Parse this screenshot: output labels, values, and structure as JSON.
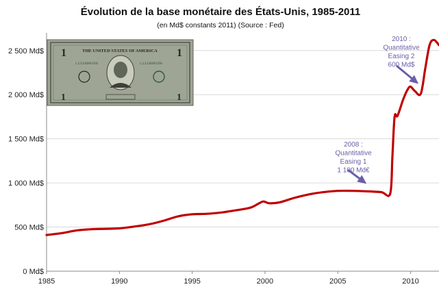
{
  "chart_data": {
    "type": "line",
    "title": "Évolution de la base monétaire des États-Unis, 1985-2011",
    "subtitle": "(en Md$ constants 2011) (Source : Fed)",
    "xlabel": "",
    "ylabel": "",
    "xlim": [
      1985,
      2011.95
    ],
    "ylim": [
      0,
      2700
    ],
    "grid": true,
    "x_ticks": [
      1985,
      1990,
      1995,
      2000,
      2005,
      2010
    ],
    "x_tick_labels": [
      "1985",
      "1990",
      "1995",
      "2000",
      "2005",
      "2010"
    ],
    "y_ticks": [
      0,
      500,
      1000,
      1500,
      2000,
      2500
    ],
    "y_tick_labels": [
      "0 Md$",
      "500 Md$",
      "1 000 Md$",
      "1 500 Md$",
      "2 000 Md$",
      "2 500 Md$"
    ],
    "series": [
      {
        "color": "#c00000",
        "x": [
          1985,
          1986,
          1987,
          1988,
          1989,
          1990,
          1991,
          1992,
          1993,
          1994,
          1995,
          1996,
          1997,
          1998,
          1999,
          1999.6,
          1999.9,
          2000.3,
          2001,
          2002,
          2003,
          2004,
          2005,
          2006,
          2007,
          2008,
          2008.6,
          2008.75,
          2008.9,
          2009.1,
          2009.5,
          2009.8,
          2010,
          2010.3,
          2010.7,
          2011,
          2011.3,
          2011.6,
          2011.95
        ],
        "y": [
          410,
          430,
          460,
          475,
          480,
          485,
          505,
          530,
          570,
          620,
          645,
          650,
          665,
          690,
          720,
          770,
          790,
          770,
          780,
          830,
          870,
          895,
          910,
          910,
          905,
          895,
          880,
          1300,
          1750,
          1760,
          1950,
          2060,
          2090,
          2040,
          2010,
          2290,
          2560,
          2620,
          2560
        ]
      }
    ],
    "annotations": [
      {
        "lines": [
          "2008 :",
          "Quantitative",
          "Easing 1",
          "1 100 Md€"
        ],
        "color": "#6b5ea8"
      },
      {
        "lines": [
          "2010 :",
          "Quantitative",
          "Easing 2",
          "600 Md$"
        ],
        "color": "#6b5ea8"
      }
    ]
  },
  "image": {
    "name": "one-dollar-bill",
    "caption": "THE UNITED STATES OF AMERICA",
    "denomination": "1",
    "serial": "L11180916G"
  }
}
